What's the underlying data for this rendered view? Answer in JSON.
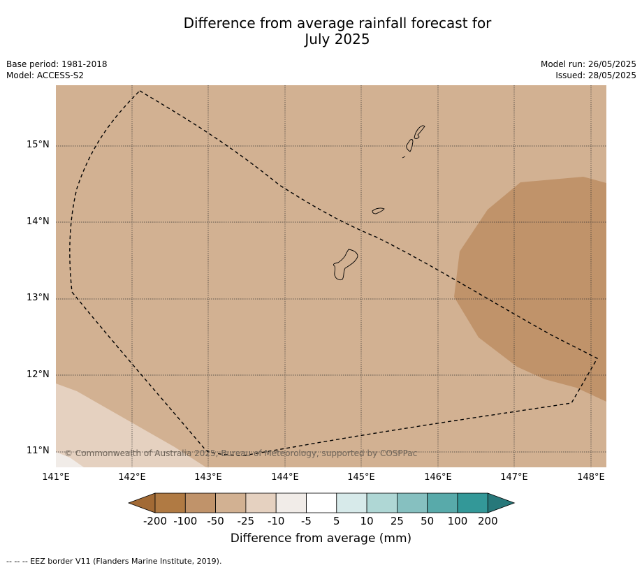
{
  "title_line1": "Difference from average rainfall forecast for",
  "title_line2": "July 2025",
  "meta_left": [
    "Base period: 1981-2018",
    "Model: ACCESS-S2"
  ],
  "meta_right": [
    "Model run: 26/05/2025",
    "Issued: 28/05/2025"
  ],
  "lat_labels": [
    "15°N",
    "14°N",
    "13°N",
    "12°N",
    "11°N"
  ],
  "lon_labels": [
    "141°E",
    "142°E",
    "143°E",
    "144°E",
    "145°E",
    "146°E",
    "147°E",
    "148°E"
  ],
  "copyright": "© Commonwealth of Australia 2025, Bureau of Meteorology, supported by COSPPac",
  "colorbar": {
    "title": "Difference from average (mm)",
    "labels": [
      "-200",
      "-100",
      "-50",
      "-25",
      "-10",
      "-5",
      "5",
      "10",
      "25",
      "50",
      "100",
      "200"
    ],
    "colors": [
      "#a26a35",
      "#b07a43",
      "#c0936a",
      "#d2b192",
      "#e5d1c0",
      "#f1ece8",
      "#ffffff",
      "#d7eaea",
      "#afd7d5",
      "#86c0c0",
      "#58aaaa",
      "#339898",
      "#27787a"
    ]
  },
  "footer": "--  --  -- EEZ border V11 (Flanders Marine Institute, 2019)."
}
